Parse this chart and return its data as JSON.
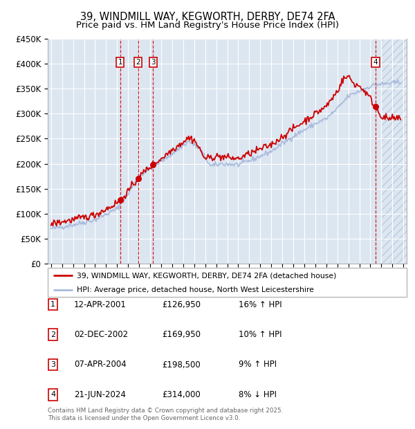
{
  "title": "39, WINDMILL WAY, KEGWORTH, DERBY, DE74 2FA",
  "subtitle": "Price paid vs. HM Land Registry's House Price Index (HPI)",
  "ylim": [
    0,
    450000
  ],
  "yticks": [
    0,
    50000,
    100000,
    150000,
    200000,
    250000,
    300000,
    350000,
    400000,
    450000
  ],
  "ytick_labels": [
    "£0",
    "£50K",
    "£100K",
    "£150K",
    "£200K",
    "£250K",
    "£300K",
    "£350K",
    "£400K",
    "£450K"
  ],
  "xlim_start": 1994.7,
  "xlim_end": 2027.3,
  "background_color": "#dce6f1",
  "grid_color": "#ffffff",
  "red_color": "#cc0000",
  "blue_color": "#aabbdd",
  "sale_dates_decimal": [
    2001.283,
    2002.919,
    2004.272,
    2024.472
  ],
  "sale_prices": [
    126950,
    169950,
    198500,
    314000
  ],
  "sale_labels": [
    "1",
    "2",
    "3",
    "4"
  ],
  "sale_date_strings": [
    "12-APR-2001",
    "02-DEC-2002",
    "07-APR-2004",
    "21-JUN-2024"
  ],
  "sale_price_strings": [
    "£126,950",
    "£169,950",
    "£198,500",
    "£314,000"
  ],
  "sale_hpi_strings": [
    "16% ↑ HPI",
    "10% ↑ HPI",
    "9% ↑ HPI",
    "8% ↓ HPI"
  ],
  "legend_line1": "39, WINDMILL WAY, KEGWORTH, DERBY, DE74 2FA (detached house)",
  "legend_line2": "HPI: Average price, detached house, North West Leicestershire",
  "footer": "Contains HM Land Registry data © Crown copyright and database right 2025.\nThis data is licensed under the Open Government Licence v3.0.",
  "hatch_start": 2025.0
}
